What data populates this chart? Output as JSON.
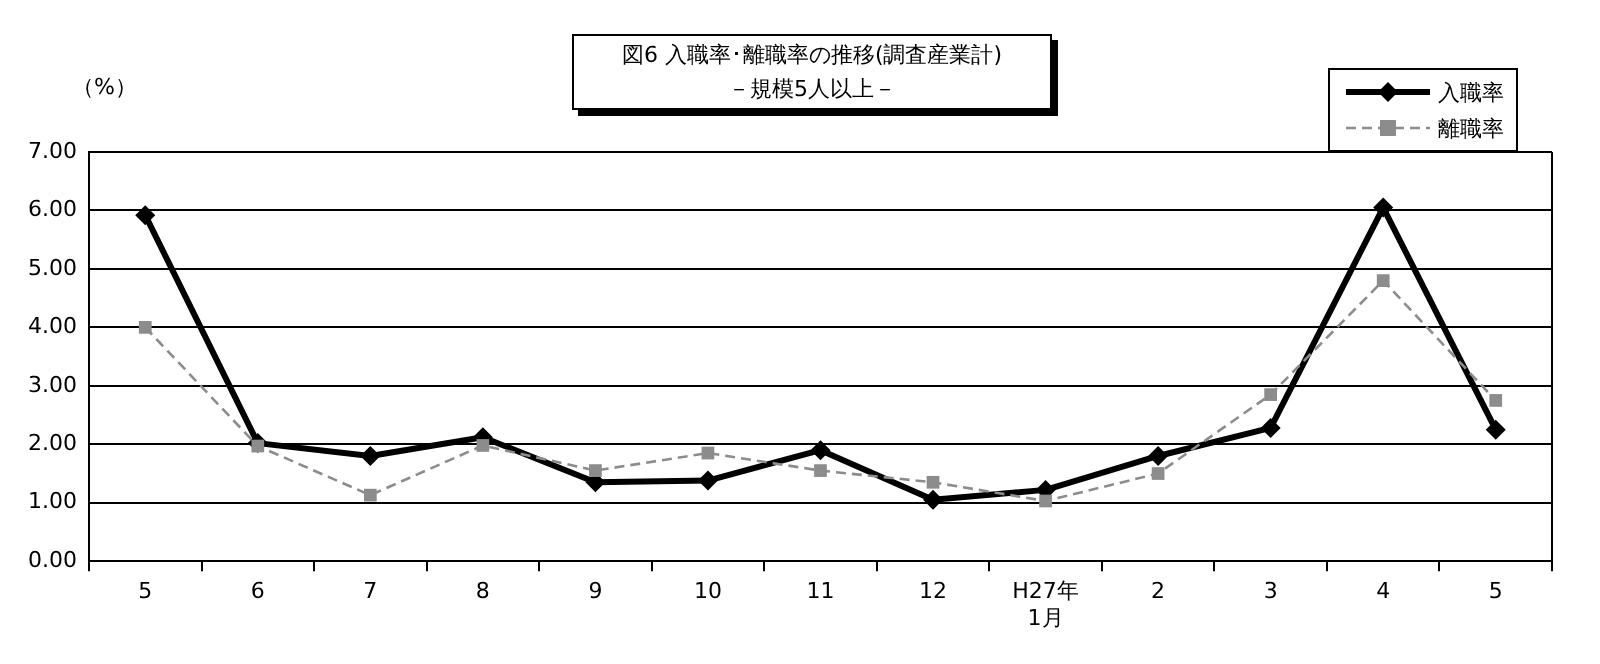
{
  "chart_data": {
    "type": "line",
    "title": "図6  入職率･離職率の推移(調査産業計)",
    "subtitle": "－規模5人以上－",
    "ylabel": "（%）",
    "categories": [
      "5",
      "6",
      "7",
      "8",
      "9",
      "10",
      "11",
      "12",
      "H27年\n1月",
      "2",
      "3",
      "4",
      "5"
    ],
    "series": [
      {
        "name": "入職率",
        "color": "#000000",
        "marker": "diamond",
        "line_style": "solid",
        "values": [
          5.92,
          2.02,
          1.8,
          2.12,
          1.35,
          1.38,
          1.9,
          1.05,
          1.22,
          1.8,
          2.28,
          6.05,
          2.25
        ]
      },
      {
        "name": "離職率",
        "color": "#8c8c8c",
        "marker": "square",
        "line_style": "dashed",
        "values": [
          4.0,
          1.97,
          1.13,
          1.98,
          1.55,
          1.85,
          1.55,
          1.35,
          1.03,
          1.5,
          2.85,
          4.8,
          2.75
        ]
      }
    ],
    "ylim": [
      0,
      7
    ],
    "yticks": [
      {
        "value": 0,
        "label": "0.00"
      },
      {
        "value": 1,
        "label": "1.00"
      },
      {
        "value": 2,
        "label": "2.00"
      },
      {
        "value": 3,
        "label": "3.00"
      },
      {
        "value": 4,
        "label": "4.00"
      },
      {
        "value": 5,
        "label": "5.00"
      },
      {
        "value": 6,
        "label": "6.00"
      },
      {
        "value": 7,
        "label": "7.00"
      }
    ],
    "grid": "y",
    "legend": "top right"
  }
}
